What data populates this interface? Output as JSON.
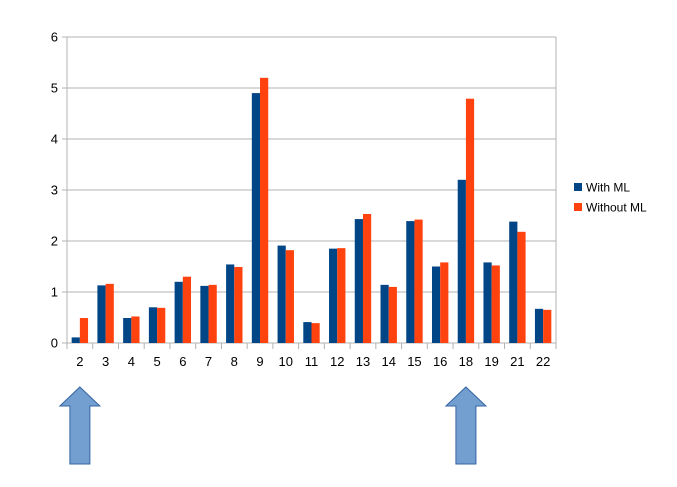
{
  "chart_data": {
    "type": "bar",
    "categories": [
      "2",
      "3",
      "4",
      "5",
      "6",
      "7",
      "8",
      "9",
      "10",
      "11",
      "12",
      "13",
      "14",
      "15",
      "16",
      "18",
      "19",
      "21",
      "22"
    ],
    "series": [
      {
        "name": "With ML",
        "color": "#004586",
        "values": [
          0.11,
          1.13,
          0.49,
          0.7,
          1.2,
          1.12,
          1.54,
          4.9,
          1.91,
          0.41,
          1.85,
          2.43,
          1.14,
          2.39,
          1.5,
          3.2,
          1.58,
          2.38,
          0.67
        ]
      },
      {
        "name": "Without ML",
        "color": "#ff420e",
        "values": [
          0.49,
          1.16,
          0.52,
          0.69,
          1.3,
          1.14,
          1.49,
          5.2,
          1.82,
          0.39,
          1.86,
          2.53,
          1.1,
          2.42,
          1.58,
          4.79,
          1.52,
          2.18,
          0.65
        ]
      }
    ],
    "ylim": [
      0,
      6
    ],
    "yticks": [
      0,
      1,
      2,
      3,
      4,
      5,
      6
    ],
    "grid": true,
    "legend_position": "right"
  },
  "annotations": {
    "arrows": [
      {
        "name": "up-arrow-left",
        "category": "2",
        "color": "#729fcf"
      },
      {
        "name": "up-arrow-right",
        "category": "18",
        "color": "#729fcf"
      }
    ]
  }
}
